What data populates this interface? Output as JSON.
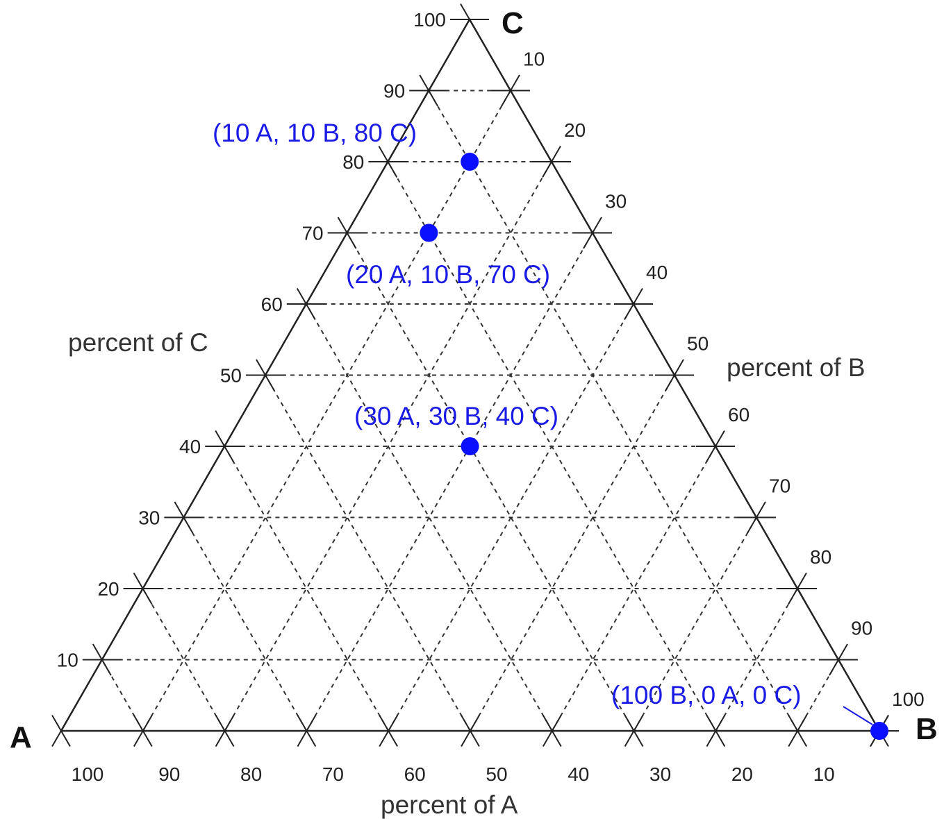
{
  "chart_data": {
    "type": "ternary",
    "title": "",
    "vertices": {
      "A": "A",
      "B": "B",
      "C": "C"
    },
    "axis_labels": {
      "A": "percent of A",
      "B": "percent of B",
      "C": "percent of C"
    },
    "ticks": {
      "A": [
        "100",
        "90",
        "80",
        "70",
        "60",
        "50",
        "40",
        "30",
        "20",
        "10"
      ],
      "B": [
        "10",
        "20",
        "30",
        "40",
        "50",
        "60",
        "70",
        "80",
        "90",
        "100"
      ],
      "C": [
        "10",
        "20",
        "30",
        "40",
        "50",
        "60",
        "70",
        "80",
        "90",
        "100"
      ]
    },
    "grid_step": 10,
    "grid": true,
    "points": [
      {
        "A": 10,
        "B": 10,
        "C": 80,
        "label": "(10 A, 10 B, 80 C)"
      },
      {
        "A": 20,
        "B": 10,
        "C": 70,
        "label": "(20 A, 10 B, 70 C)"
      },
      {
        "A": 30,
        "B": 30,
        "C": 40,
        "label": "(30 A, 30 B, 40 C)"
      },
      {
        "A": 0,
        "B": 100,
        "C": 0,
        "label": "(100 B, 0 A, 0 C)"
      }
    ],
    "point_color": "#0a10ff"
  }
}
